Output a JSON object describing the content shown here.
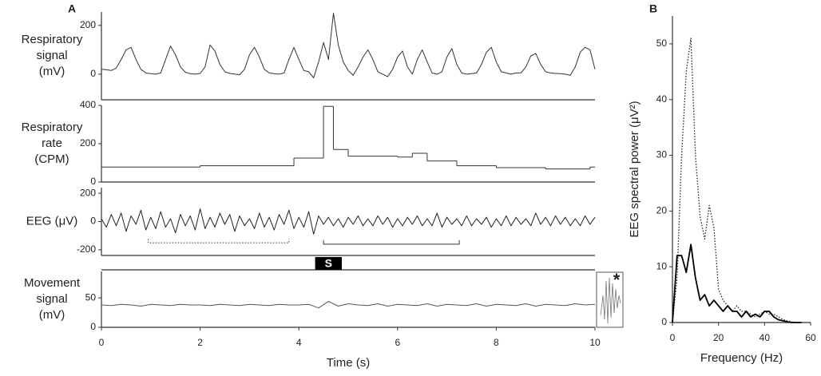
{
  "chart_data": [
    {
      "type": "line",
      "panel": "A",
      "ylabel": [
        "Respiratory",
        "signal",
        "(mV)"
      ],
      "xlim": [
        0,
        10
      ],
      "ylim": [
        -105,
        255
      ],
      "yticks": [
        0,
        200
      ],
      "x": [
        0,
        0.1,
        0.2,
        0.3,
        0.4,
        0.5,
        0.6,
        0.7,
        0.8,
        0.9,
        1,
        1.1,
        1.2,
        1.3,
        1.4,
        1.5,
        1.6,
        1.7,
        1.8,
        1.9,
        2,
        2.1,
        2.2,
        2.3,
        2.4,
        2.5,
        2.6,
        2.7,
        2.8,
        2.9,
        3,
        3.1,
        3.2,
        3.3,
        3.4,
        3.5,
        3.6,
        3.7,
        3.8,
        3.9,
        4,
        4.1,
        4.2,
        4.3,
        4.4,
        4.5,
        4.6,
        4.7,
        4.8,
        4.9,
        5,
        5.1,
        5.2,
        5.3,
        5.4,
        5.5,
        5.6,
        5.7,
        5.8,
        5.9,
        6,
        6.1,
        6.2,
        6.3,
        6.4,
        6.5,
        6.6,
        6.7,
        6.8,
        6.9,
        7,
        7.1,
        7.2,
        7.3,
        7.4,
        7.5,
        7.6,
        7.7,
        7.8,
        7.9,
        8,
        8.1,
        8.2,
        8.3,
        8.4,
        8.5,
        8.6,
        8.7,
        8.8,
        8.9,
        9,
        9.1,
        9.2,
        9.3,
        9.4,
        9.5,
        9.6,
        9.7,
        9.8,
        9.9,
        10
      ],
      "series": [
        {
          "color": "#333333",
          "dash": "solid",
          "values": [
            20,
            18,
            15,
            25,
            60,
            100,
            110,
            60,
            20,
            5,
            2,
            0,
            5,
            60,
            115,
            80,
            30,
            8,
            2,
            0,
            3,
            30,
            120,
            95,
            40,
            10,
            3,
            0,
            -2,
            20,
            80,
            110,
            70,
            20,
            5,
            2,
            0,
            5,
            60,
            110,
            60,
            15,
            10,
            -15,
            50,
            130,
            60,
            250,
            120,
            50,
            15,
            -5,
            30,
            70,
            100,
            60,
            10,
            0,
            -10,
            20,
            70,
            95,
            30,
            0,
            60,
            100,
            50,
            5,
            0,
            10,
            70,
            105,
            40,
            5,
            0,
            2,
            5,
            40,
            90,
            110,
            50,
            10,
            5,
            0,
            5,
            5,
            30,
            75,
            85,
            40,
            10,
            5,
            3,
            2,
            0,
            -5,
            30,
            90,
            110,
            100,
            20
          ]
        }
      ]
    },
    {
      "type": "step",
      "ylabel": [
        "Respiratory",
        "rate",
        "(CPM)"
      ],
      "xlim": [
        0,
        10
      ],
      "ylim": [
        0,
        400
      ],
      "yticks": [
        0,
        200,
        400
      ],
      "x": [
        0,
        2,
        3.9,
        4.5,
        4.7,
        5.0,
        6.0,
        6.3,
        6.6,
        7.2,
        8.0,
        9.0,
        9.9
      ],
      "series": [
        {
          "color": "#333333",
          "dash": "solid",
          "values": [
            78,
            85,
            125,
            395,
            170,
            135,
            130,
            150,
            110,
            85,
            75,
            68,
            78
          ]
        }
      ]
    },
    {
      "type": "line",
      "ylabel": [
        "EEG (μV)"
      ],
      "xlim": [
        0,
        10
      ],
      "ylim": [
        -240,
        240
      ],
      "yticks": [
        -200,
        0,
        200
      ],
      "x": [
        0,
        0.1,
        0.2,
        0.3,
        0.4,
        0.5,
        0.6,
        0.7,
        0.8,
        0.9,
        1,
        1.1,
        1.2,
        1.3,
        1.4,
        1.5,
        1.6,
        1.7,
        1.8,
        1.9,
        2,
        2.1,
        2.2,
        2.3,
        2.4,
        2.5,
        2.6,
        2.7,
        2.8,
        2.9,
        3,
        3.1,
        3.2,
        3.3,
        3.4,
        3.5,
        3.6,
        3.7,
        3.8,
        3.9,
        4,
        4.1,
        4.2,
        4.3,
        4.4,
        4.5,
        4.6,
        4.7,
        4.8,
        4.9,
        5,
        5.1,
        5.2,
        5.3,
        5.4,
        5.5,
        5.6,
        5.7,
        5.8,
        5.9,
        6,
        6.1,
        6.2,
        6.3,
        6.4,
        6.5,
        6.6,
        6.7,
        6.8,
        6.9,
        7,
        7.1,
        7.2,
        7.3,
        7.4,
        7.5,
        7.6,
        7.7,
        7.8,
        7.9,
        8,
        8.1,
        8.2,
        8.3,
        8.4,
        8.5,
        8.6,
        8.7,
        8.8,
        8.9,
        9,
        9.1,
        9.2,
        9.3,
        9.4,
        9.5,
        9.6,
        9.7,
        9.8,
        9.9,
        10
      ],
      "series": [
        {
          "color": "#222222",
          "dash": "solid",
          "values": [
            20,
            -40,
            50,
            -30,
            60,
            -70,
            40,
            -20,
            80,
            -60,
            30,
            -50,
            70,
            -40,
            20,
            -80,
            50,
            -30,
            40,
            -60,
            90,
            -50,
            30,
            -40,
            60,
            -20,
            50,
            -70,
            40,
            -30,
            20,
            -50,
            60,
            -40,
            30,
            -60,
            50,
            -20,
            80,
            -50,
            30,
            -40,
            70,
            -90,
            40,
            -20,
            30,
            -30,
            20,
            -40,
            30,
            -20,
            40,
            -30,
            20,
            -30,
            40,
            -20,
            30,
            -40,
            20,
            -30,
            30,
            -20,
            40,
            -30,
            20,
            -30,
            60,
            -40,
            30,
            -20,
            20,
            -30,
            40,
            -30,
            20,
            -20,
            30,
            -40,
            20,
            -30,
            40,
            -30,
            30,
            -20,
            20,
            -30,
            60,
            -20,
            30,
            -30,
            40,
            -20,
            30,
            -30,
            20,
            -30,
            40,
            -20,
            30
          ]
        }
      ],
      "intervals": [
        {
          "start": 0.95,
          "end": 3.8,
          "level": -150,
          "style": "dotted"
        },
        {
          "start": 4.5,
          "end": 7.25,
          "level": -160,
          "style": "solid"
        }
      ]
    },
    {
      "type": "line",
      "ylabel": [
        "Movement",
        "signal",
        "(mV)"
      ],
      "xlabel": "Time (s)",
      "xlim": [
        0,
        10
      ],
      "ylim": [
        0,
        95
      ],
      "yticks": [
        0,
        50
      ],
      "xticks": [
        0,
        2,
        4,
        6,
        8,
        10
      ],
      "stimulus": {
        "label": "S",
        "start": 4.33,
        "end": 4.87
      },
      "inset_label": "*",
      "x": [
        0,
        0.2,
        0.4,
        0.6,
        0.8,
        1,
        1.2,
        1.4,
        1.6,
        1.8,
        2,
        2.2,
        2.4,
        2.6,
        2.8,
        3,
        3.2,
        3.4,
        3.6,
        3.8,
        4,
        4.2,
        4.4,
        4.6,
        4.8,
        5,
        5.2,
        5.4,
        5.6,
        5.8,
        6,
        6.2,
        6.4,
        6.6,
        6.8,
        7,
        7.2,
        7.4,
        7.6,
        7.8,
        8,
        8.2,
        8.4,
        8.6,
        8.8,
        9,
        9.2,
        9.4,
        9.6,
        9.8,
        10
      ],
      "series": [
        {
          "color": "#555555",
          "dash": "solid",
          "values": [
            38,
            37,
            39,
            38,
            36,
            39,
            38,
            37,
            39,
            38,
            38,
            37,
            39,
            38,
            37,
            39,
            38,
            37,
            39,
            38,
            38,
            39,
            33,
            44,
            36,
            40,
            38,
            37,
            40,
            36,
            39,
            38,
            37,
            40,
            36,
            39,
            38,
            37,
            40,
            36,
            39,
            38,
            37,
            40,
            36,
            39,
            38,
            37,
            40,
            38,
            39
          ]
        }
      ]
    },
    {
      "type": "line",
      "panel": "B",
      "ylabel": "EEG spectral power (μV²)",
      "xlabel": "Frequency (Hz)",
      "xlim": [
        0,
        60
      ],
      "ylim": [
        0,
        55
      ],
      "xticks": [
        0,
        20,
        40,
        60
      ],
      "yticks": [
        0,
        10,
        20,
        30,
        40,
        50
      ],
      "x": [
        0,
        2,
        4,
        6,
        8,
        10,
        12,
        14,
        16,
        18,
        20,
        22,
        24,
        26,
        28,
        30,
        32,
        34,
        36,
        38,
        40,
        42,
        44,
        46,
        48,
        50,
        52,
        54,
        56
      ],
      "series": [
        {
          "color": "#222222",
          "dash": "dotted",
          "values": [
            0,
            8,
            30,
            45,
            51,
            30,
            19,
            15,
            21,
            17,
            6,
            4,
            3,
            2,
            3,
            2,
            2,
            1.5,
            1,
            1.5,
            2,
            1.5,
            1.5,
            1,
            0.5,
            0.3,
            0.1,
            0,
            0
          ]
        },
        {
          "color": "#000000",
          "dash": "solid",
          "values": [
            0,
            12,
            12,
            9,
            14,
            8,
            4,
            5,
            3,
            4,
            3,
            2,
            3,
            2,
            2,
            1,
            2,
            1,
            1.5,
            1,
            2,
            2,
            1,
            0.5,
            0.3,
            0.1,
            0,
            0,
            0
          ]
        }
      ]
    }
  ]
}
